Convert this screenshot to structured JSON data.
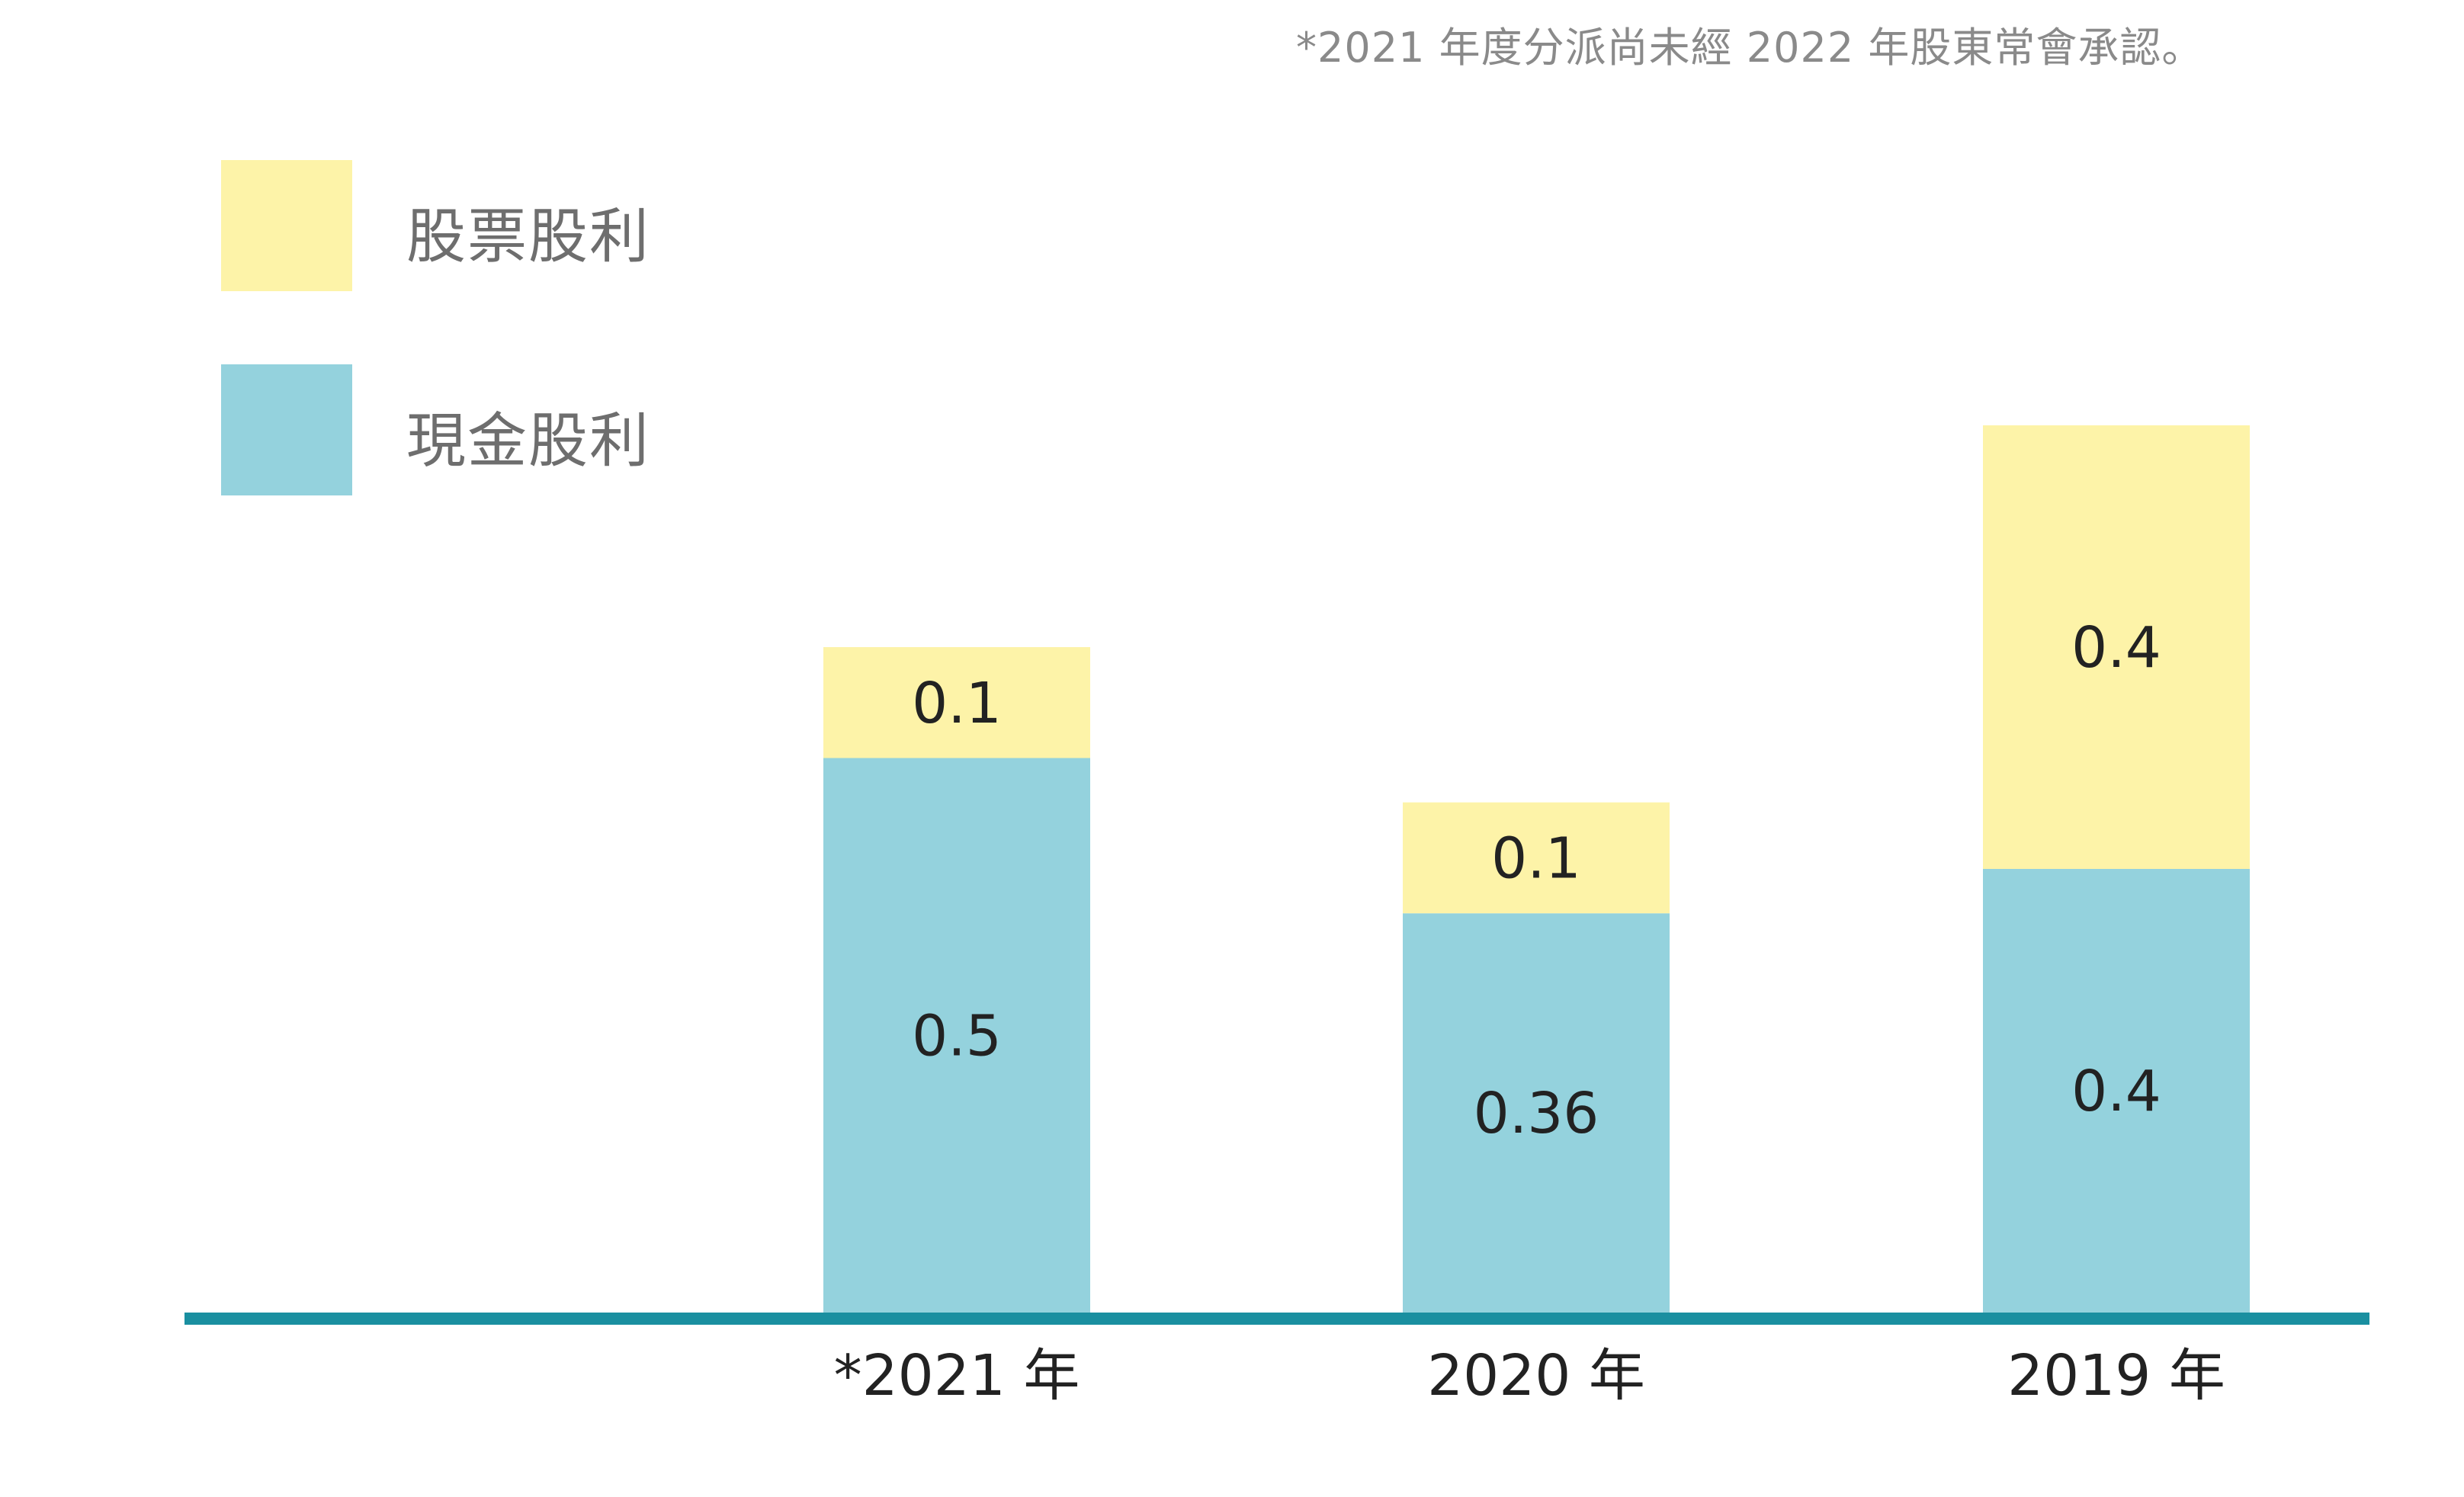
{
  "footnote": "*2021 年度分派尚未經 2022 年股東常會承認。",
  "colors": {
    "stock": "#FDF3A8",
    "cash": "#94D2DD",
    "axis": "#1A8FA0",
    "text": "#222222",
    "legend_text": "#6E6E6E"
  },
  "legend": {
    "stock_label": "股票股利",
    "cash_label": "現金股利"
  },
  "chart_data": {
    "type": "bar",
    "stacked": true,
    "categories": [
      "*2021 年",
      "2020 年",
      "2019 年"
    ],
    "series": [
      {
        "name": "現金股利",
        "values": [
          0.5,
          0.36,
          0.4
        ],
        "labels": [
          "0.5",
          "0.36",
          "0.4"
        ],
        "color": "#94D2DD"
      },
      {
        "name": "股票股利",
        "values": [
          0.1,
          0.1,
          0.4
        ],
        "labels": [
          "0.1",
          "0.1",
          "0.4"
        ],
        "color": "#FDF3A8"
      }
    ],
    "title": "",
    "xlabel": "",
    "ylabel": "",
    "ylim": [
      0,
      0.8
    ],
    "grid": false,
    "legend_position": "top-left"
  }
}
